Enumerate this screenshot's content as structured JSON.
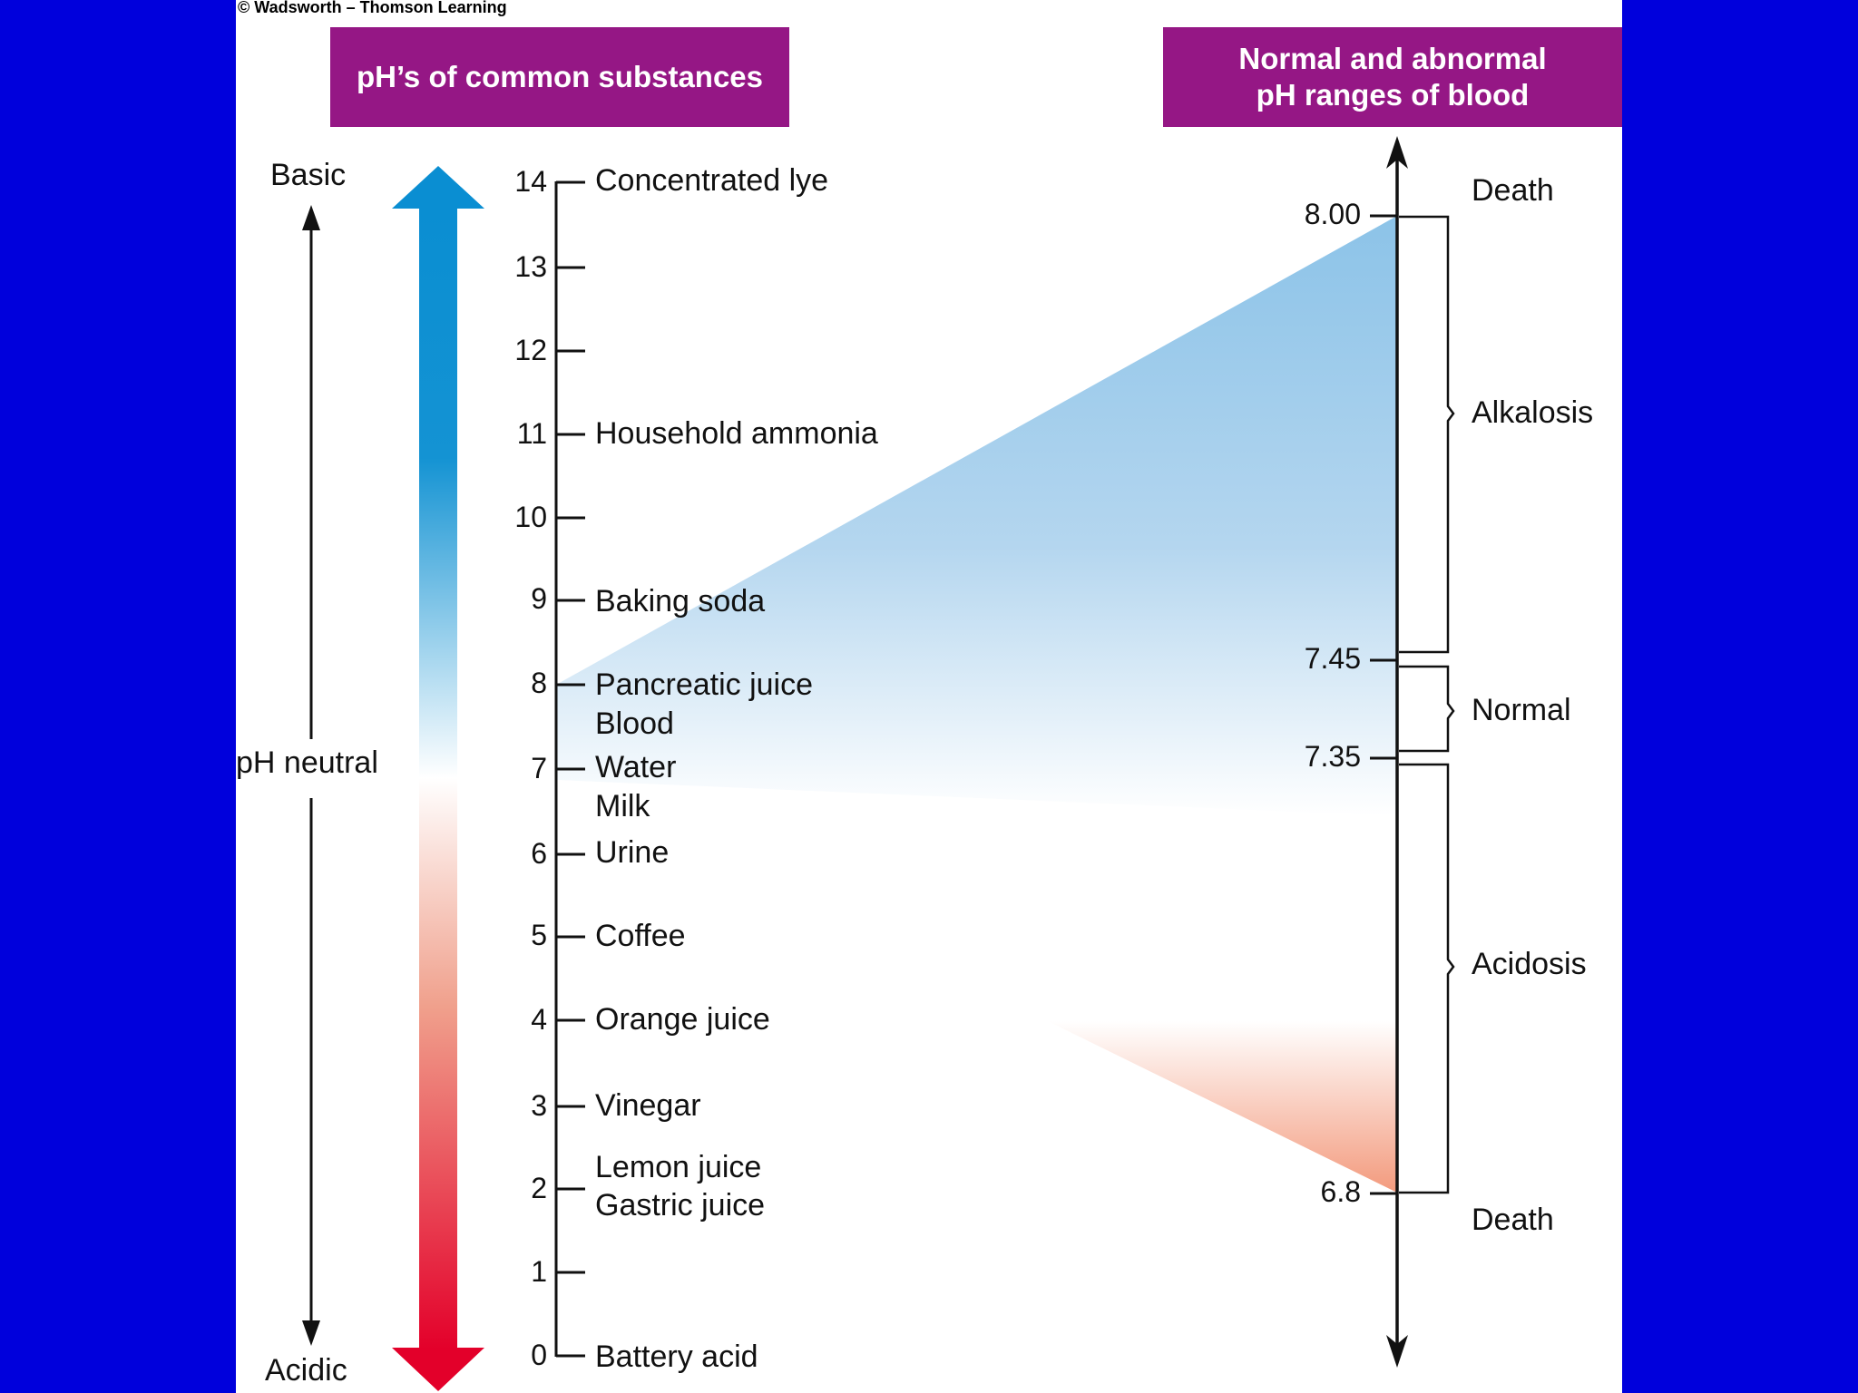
{
  "copyright": "© Wadsworth – Thomson Learning",
  "left_header": "pH’s of common substances",
  "right_header": {
    "line1": "Normal and abnormal",
    "line2": "pH ranges of blood"
  },
  "left_axis": {
    "basic": "Basic",
    "neutral": "pH neutral",
    "acidic": "Acidic"
  },
  "scale_ticks": [
    "14",
    "13",
    "12",
    "11",
    "10",
    "9",
    "8",
    "7",
    "6",
    "5",
    "4",
    "3",
    "2",
    "1",
    "0"
  ],
  "substances": [
    {
      "label": "Concentrated lye",
      "ph": 14
    },
    {
      "label": "Household ammonia",
      "ph": 11
    },
    {
      "label": "Baking soda",
      "ph": 9
    },
    {
      "label": "Pancreatic juice",
      "ph": 8
    },
    {
      "label": "Blood",
      "ph": 7.5
    },
    {
      "label": "Water",
      "ph": 7
    },
    {
      "label": "Milk",
      "ph": 6.5
    },
    {
      "label": "Urine",
      "ph": 6
    },
    {
      "label": "Coffee",
      "ph": 5
    },
    {
      "label": "Orange juice",
      "ph": 4
    },
    {
      "label": "Vinegar",
      "ph": 3
    },
    {
      "label": "Lemon juice",
      "ph": 2.2
    },
    {
      "label": "Gastric juice",
      "ph": 1.8
    },
    {
      "label": "Battery acid",
      "ph": 0
    }
  ],
  "blood_scale": {
    "values": [
      "8.00",
      "7.45",
      "7.35",
      "6.8"
    ],
    "ranges": {
      "death_top": "Death",
      "alkalosis": "Alkalosis",
      "normal": "Normal",
      "acidosis": "Acidosis",
      "death_bottom": "Death"
    }
  },
  "colors": {
    "background": "#0000dc",
    "header": "#951785",
    "basic": "#0a8ed2",
    "neutral": "#ffffff",
    "acidic": "#e3002a",
    "wedge_basic": "#8cc3e8",
    "wedge_acidic": "#f39a7d"
  }
}
